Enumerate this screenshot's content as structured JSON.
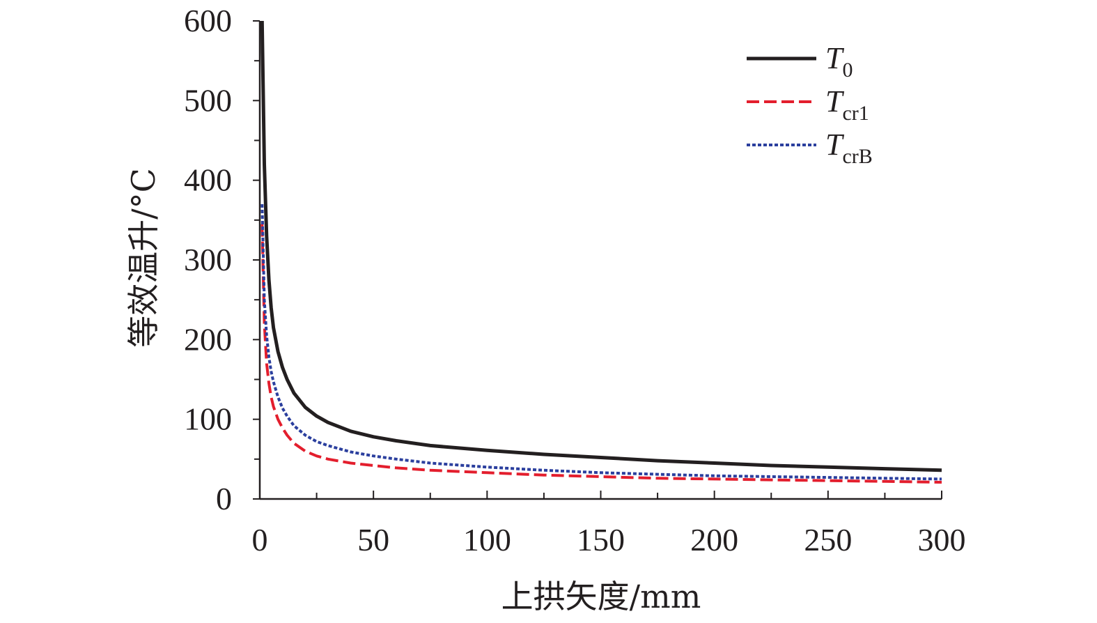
{
  "chart_data": {
    "type": "line",
    "title": "",
    "xlabel": "上拱矢度/mm",
    "ylabel": "等效温升/°C",
    "xlim": [
      0,
      300
    ],
    "ylim": [
      0,
      600
    ],
    "x_ticks": [
      "0",
      "50",
      "100",
      "150",
      "200",
      "250",
      "300"
    ],
    "y_ticks": [
      "0",
      "100",
      "200",
      "300",
      "400",
      "500",
      "600"
    ],
    "grid": false,
    "legend_position": "top-right",
    "x": [
      1,
      2,
      3,
      4,
      5,
      6,
      8,
      10,
      12,
      15,
      20,
      25,
      30,
      40,
      50,
      60,
      75,
      100,
      125,
      150,
      175,
      200,
      225,
      250,
      275,
      300
    ],
    "series": [
      {
        "name": "T0",
        "label_main": "T",
        "label_sub": "0",
        "color": "#231f20",
        "style": "solid",
        "values": [
          600,
          420,
          330,
          275,
          240,
          215,
          185,
          165,
          150,
          133,
          115,
          104,
          96,
          85,
          78,
          73,
          67,
          61,
          56,
          52,
          48,
          45,
          42,
          40,
          38,
          36
        ]
      },
      {
        "name": "Tcr1",
        "label_main": "T",
        "label_sub": "cr1",
        "color": "#e31e2d",
        "style": "dashed",
        "values": [
          345,
          220,
          170,
          145,
          128,
          116,
          100,
          89,
          80,
          70,
          60,
          54,
          50,
          45,
          42,
          39,
          36,
          33,
          30,
          28,
          26,
          25,
          24,
          23,
          22,
          21
        ]
      },
      {
        "name": "TcrB",
        "label_main": "T",
        "label_sub": "crB",
        "color": "#2b3f9e",
        "style": "dotted",
        "values": [
          370,
          250,
          205,
          178,
          160,
          147,
          128,
          114,
          104,
          92,
          80,
          72,
          67,
          59,
          54,
          50,
          45,
          40,
          36,
          33,
          31,
          29,
          28,
          27,
          26,
          25
        ]
      }
    ]
  }
}
